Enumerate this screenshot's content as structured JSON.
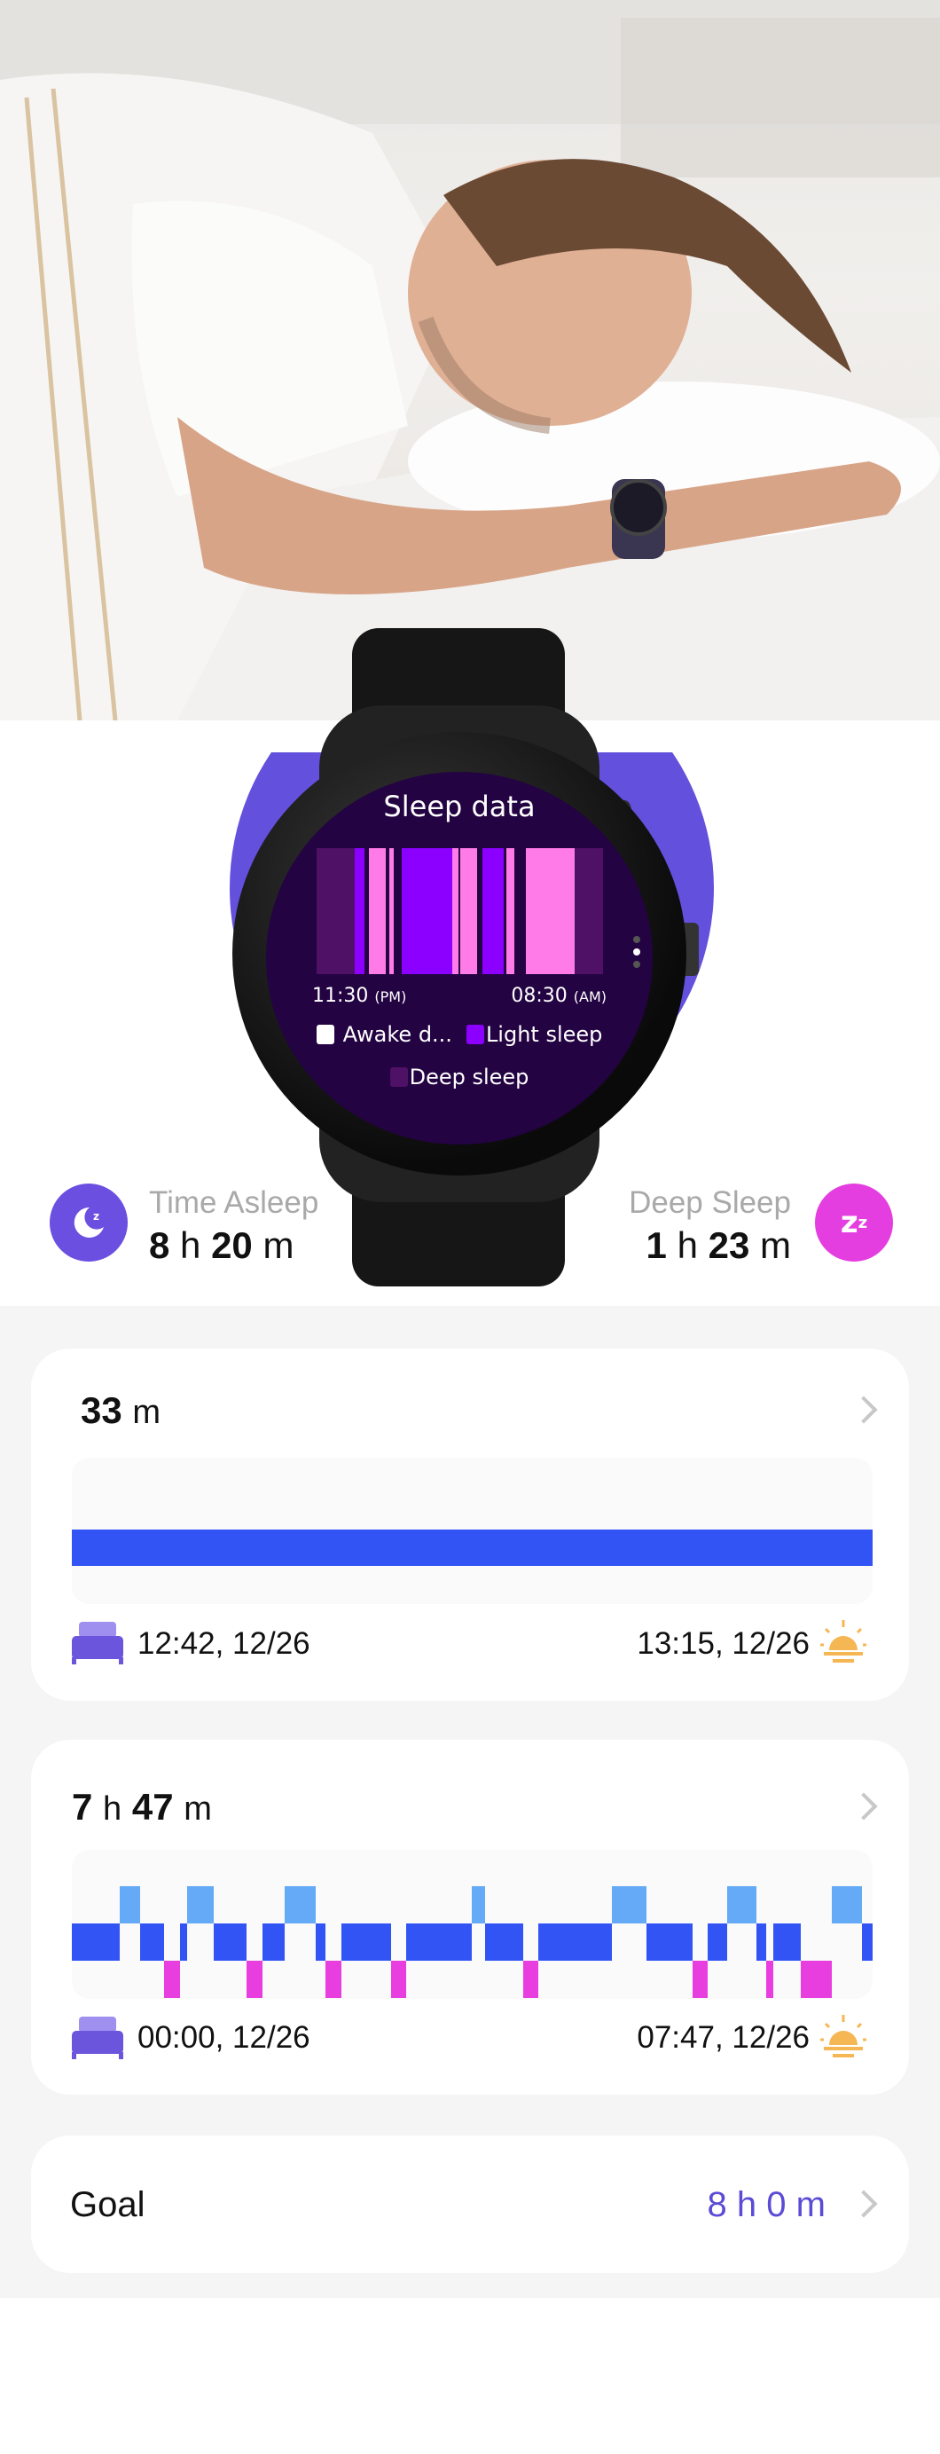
{
  "hero": {
    "image": "man-sleeping-wearing-smartwatch"
  },
  "watch": {
    "title": "Sleep data",
    "time_start": "11:30",
    "time_start_suffix": "(PM)",
    "time_end": "08:30",
    "time_end_suffix": "(AM)",
    "legend": [
      {
        "label": "Awake d...",
        "color": "#ffffff"
      },
      {
        "label": "Light sleep",
        "color": "#8b00ff"
      },
      {
        "label": "Deep sleep",
        "color": "#4f1166"
      }
    ],
    "page_dots": 3,
    "active_dot": 1,
    "bars_range_minutes": [
      0,
      540
    ],
    "bars": [
      {
        "start": 0,
        "end": 72,
        "color": "#4f1166"
      },
      {
        "start": 72,
        "end": 90,
        "color": "#8b00ff"
      },
      {
        "start": 99,
        "end": 130,
        "color": "#ff7be8"
      },
      {
        "start": 137,
        "end": 145,
        "color": "#ff7be8"
      },
      {
        "start": 160,
        "end": 255,
        "color": "#8b00ff"
      },
      {
        "start": 255,
        "end": 268,
        "color": "#ff7be8"
      },
      {
        "start": 271,
        "end": 302,
        "color": "#ff7be8"
      },
      {
        "start": 313,
        "end": 353,
        "color": "#8b00ff"
      },
      {
        "start": 357,
        "end": 372,
        "color": "#ff7be8"
      },
      {
        "start": 395,
        "end": 486,
        "color": "#ff7be8"
      },
      {
        "start": 486,
        "end": 540,
        "color": "#4f1166"
      }
    ]
  },
  "stats": {
    "time_asleep": {
      "label": "Time Asleep",
      "h": "8",
      "h_unit": "h",
      "m": "20",
      "m_unit": "m",
      "icon": "moon-icon",
      "color": "#6a4fe0"
    },
    "deep_sleep": {
      "label": "Deep Sleep",
      "h": "1",
      "h_unit": "h",
      "m": "23",
      "m_unit": "m",
      "icon": "zzz-icon",
      "color": "#e43ee0"
    }
  },
  "colors": {
    "awake": "#64aaf6",
    "light": "#3354f4",
    "deep": "#e83ee0",
    "accent": "#5b4bd6",
    "sun": "#f5b654",
    "bed": "#6a55dc"
  },
  "nap_card": {
    "value": "33",
    "unit": "m",
    "start": "12:42, 12/26",
    "end": "13:15, 12/26",
    "segments": [
      {
        "start": 0,
        "end": 33,
        "level": 1
      }
    ],
    "total_minutes": 33
  },
  "night_card": {
    "h": "7",
    "h_unit": "h",
    "m": "47",
    "m_unit": "m",
    "start": "00:00, 12/26",
    "end": "07:47, 12/26",
    "total_minutes": 467,
    "segments": [
      {
        "start": 0,
        "end": 28,
        "level": 1
      },
      {
        "start": 28,
        "end": 40,
        "level": 0
      },
      {
        "start": 40,
        "end": 54,
        "level": 1
      },
      {
        "start": 54,
        "end": 63,
        "level": 2
      },
      {
        "start": 63,
        "end": 67,
        "level": 1
      },
      {
        "start": 67,
        "end": 83,
        "level": 0
      },
      {
        "start": 83,
        "end": 102,
        "level": 1
      },
      {
        "start": 102,
        "end": 111,
        "level": 2
      },
      {
        "start": 111,
        "end": 124,
        "level": 1
      },
      {
        "start": 124,
        "end": 142,
        "level": 0
      },
      {
        "start": 142,
        "end": 148,
        "level": 1
      },
      {
        "start": 148,
        "end": 157,
        "level": 2
      },
      {
        "start": 157,
        "end": 186,
        "level": 1
      },
      {
        "start": 186,
        "end": 195,
        "level": 2
      },
      {
        "start": 195,
        "end": 233,
        "level": 1
      },
      {
        "start": 233,
        "end": 241,
        "level": 0
      },
      {
        "start": 241,
        "end": 263,
        "level": 1
      },
      {
        "start": 263,
        "end": 272,
        "level": 2
      },
      {
        "start": 272,
        "end": 315,
        "level": 1
      },
      {
        "start": 315,
        "end": 335,
        "level": 0
      },
      {
        "start": 335,
        "end": 362,
        "level": 1
      },
      {
        "start": 362,
        "end": 371,
        "level": 2
      },
      {
        "start": 371,
        "end": 382,
        "level": 1
      },
      {
        "start": 382,
        "end": 399,
        "level": 0
      },
      {
        "start": 399,
        "end": 405,
        "level": 1
      },
      {
        "start": 405,
        "end": 409,
        "level": 2
      },
      {
        "start": 409,
        "end": 425,
        "level": 1
      },
      {
        "start": 425,
        "end": 443,
        "level": 2
      },
      {
        "start": 443,
        "end": 461,
        "level": 0
      },
      {
        "start": 461,
        "end": 467,
        "level": 1
      }
    ]
  },
  "goal": {
    "label": "Goal",
    "h": "8",
    "h_unit": "h",
    "m": "0",
    "m_unit": "m"
  }
}
